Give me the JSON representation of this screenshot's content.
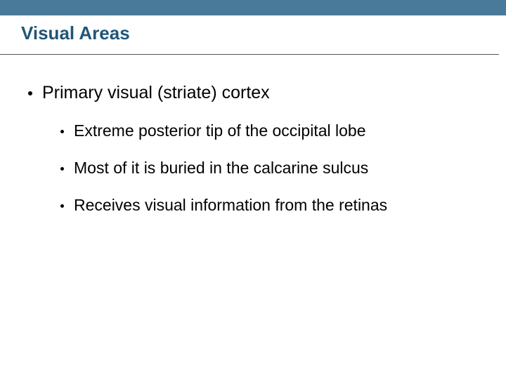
{
  "colors": {
    "header_bar": "#4a7a9a",
    "title_text": "#1f5678",
    "body_text": "#000000",
    "background": "#ffffff",
    "divider": "#555555"
  },
  "title": "Visual Areas",
  "bullets": {
    "level1": [
      {
        "text": "Primary visual (striate) cortex"
      }
    ],
    "level2": [
      {
        "text": "Extreme posterior tip of the occipital lobe"
      },
      {
        "text": "Most of it is buried in the calcarine sulcus"
      },
      {
        "text": "Receives visual information from the retinas"
      }
    ]
  },
  "typography": {
    "title_fontsize": 26,
    "l1_fontsize": 25,
    "l2_fontsize": 23,
    "font_family": "Arial"
  }
}
